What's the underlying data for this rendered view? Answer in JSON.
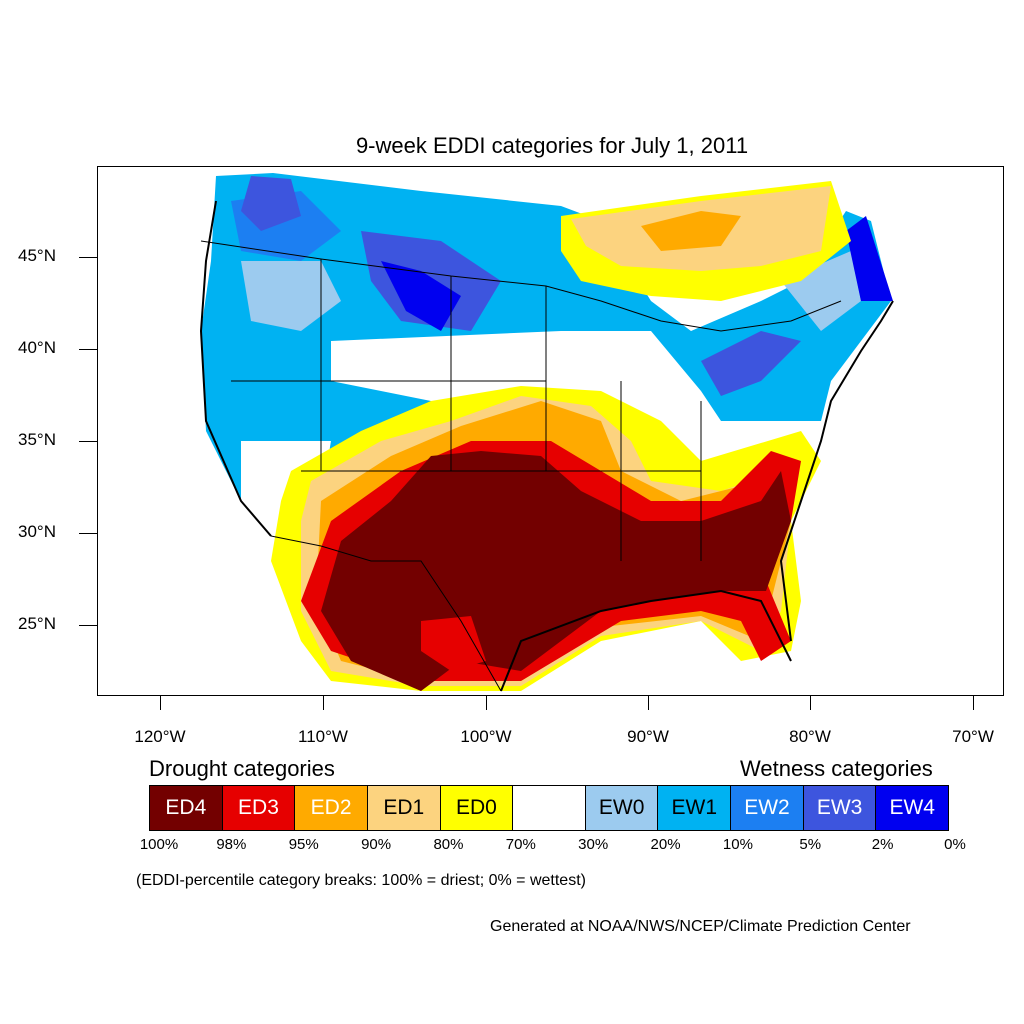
{
  "title": "9-week EDDI categories for July 1, 2011",
  "lat_labels": [
    "45°N",
    "40°N",
    "35°N",
    "30°N",
    "25°N"
  ],
  "lon_labels": [
    "120°W",
    "110°W",
    "100°W",
    "90°W",
    "80°W",
    "70°W"
  ],
  "legend": {
    "drought_heading": "Drought categories",
    "wetness_heading": "Wetness categories",
    "categories": [
      {
        "label": "ED4",
        "color": "#730000",
        "text_color": "#ffffff"
      },
      {
        "label": "ED3",
        "color": "#e60000",
        "text_color": "#ffffff"
      },
      {
        "label": "ED2",
        "color": "#ffaa00",
        "text_color": "#ffffff"
      },
      {
        "label": "ED1",
        "color": "#fcd37f",
        "text_color": "#000000"
      },
      {
        "label": "ED0",
        "color": "#ffff00",
        "text_color": "#000000"
      },
      {
        "label": "",
        "color": "#ffffff",
        "text_color": "#000000"
      },
      {
        "label": "EW0",
        "color": "#9ccbef",
        "text_color": "#000000"
      },
      {
        "label": "EW1",
        "color": "#00b2f2",
        "text_color": "#000000"
      },
      {
        "label": "EW2",
        "color": "#1c7ff2",
        "text_color": "#ffffff"
      },
      {
        "label": "EW3",
        "color": "#3d55de",
        "text_color": "#ffffff"
      },
      {
        "label": "EW4",
        "color": "#0000f0",
        "text_color": "#ffffff"
      }
    ],
    "breaks": [
      "100%",
      "98%",
      "95%",
      "90%",
      "80%",
      "70%",
      "30%",
      "20%",
      "10%",
      "5%",
      "2%",
      "0%"
    ]
  },
  "note": "(EDDI-percentile category breaks: 100% = driest; 0% = wettest)",
  "credit": "Generated at NOAA/NWS/NCEP/Climate Prediction Center"
}
